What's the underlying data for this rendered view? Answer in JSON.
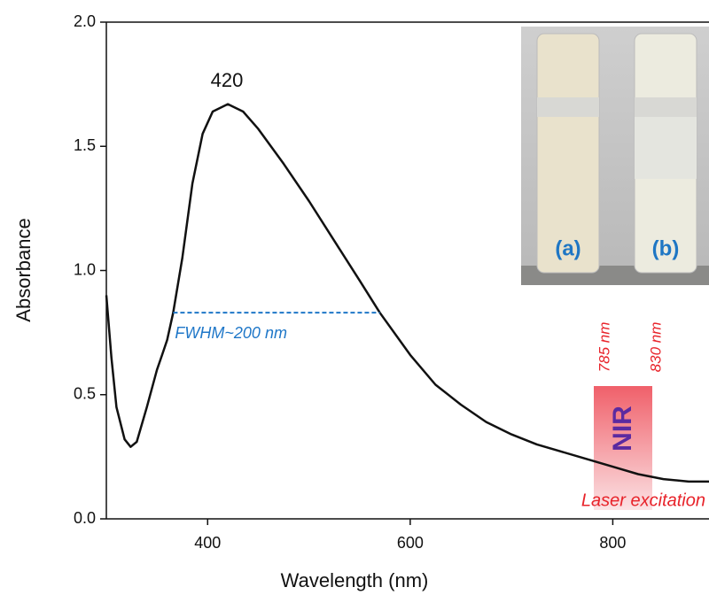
{
  "chart_data": {
    "type": "line",
    "x_label": "Wavelength (nm)",
    "y_label": "Absorbance",
    "x": [
      300,
      305,
      310,
      318,
      324,
      330,
      340,
      350,
      355,
      360,
      366,
      375,
      385,
      395,
      405,
      420,
      435,
      450,
      475,
      500,
      525,
      550,
      570,
      600,
      625,
      650,
      675,
      700,
      725,
      750,
      775,
      800,
      825,
      850,
      875,
      895
    ],
    "series": [
      {
        "color": "#111111",
        "values": [
          0.9,
          0.65,
          0.45,
          0.32,
          0.29,
          0.31,
          0.45,
          0.6,
          0.66,
          0.72,
          0.83,
          1.05,
          1.35,
          1.55,
          1.64,
          1.67,
          1.64,
          1.57,
          1.43,
          1.28,
          1.12,
          0.96,
          0.83,
          0.66,
          0.54,
          0.46,
          0.39,
          0.34,
          0.3,
          0.27,
          0.24,
          0.21,
          0.18,
          0.16,
          0.15,
          0.15
        ]
      }
    ],
    "xlim": [
      300,
      895
    ],
    "ylim": [
      0,
      2
    ],
    "xticks": [
      400,
      600,
      800
    ],
    "yticks": [
      {
        "value": 0,
        "label": "0.0"
      },
      0.5,
      {
        "value": 1,
        "label": "1.0"
      },
      1.5,
      {
        "value": 2,
        "label": "2.0"
      }
    ],
    "peak_label": "420",
    "fwhm": {
      "label": "FWHM~200 nm",
      "x": [
        366,
        570
      ],
      "y": 0.83,
      "color": "#1f77c8"
    },
    "laser": {
      "lines": [
        "785 nm",
        "830 nm"
      ],
      "band": "NIR",
      "label": "Laser excitation"
    },
    "inset": {
      "labels": [
        "(a)",
        "(b)"
      ]
    }
  }
}
